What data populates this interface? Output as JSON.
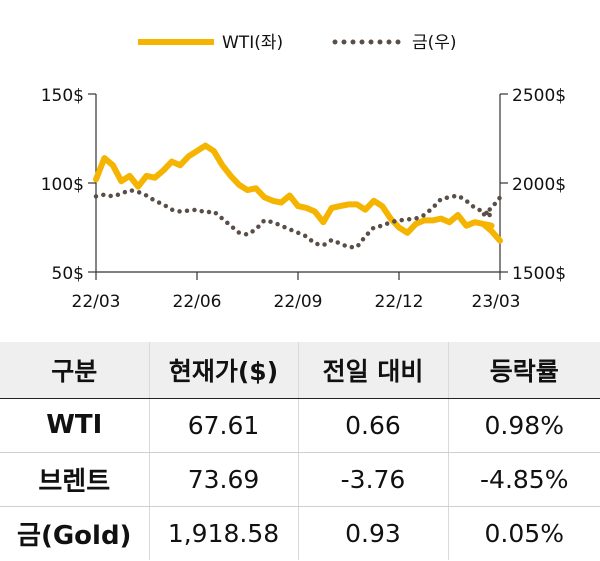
{
  "chart_data": {
    "type": "line",
    "x_ticks": [
      "22/03",
      "22/06",
      "22/09",
      "22/12",
      "23/03"
    ],
    "y_left": {
      "ticks": [
        "150$",
        "100$",
        "50$"
      ],
      "range": [
        50,
        150
      ]
    },
    "y_right": {
      "ticks": [
        "2500$",
        "2000$",
        "1500$"
      ],
      "range": [
        1500,
        2500
      ]
    },
    "legend_position": "top",
    "series": [
      {
        "name": "WTI(좌)",
        "axis": "left",
        "color": "#f5b400",
        "style": "solid",
        "x": [
          "22/03",
          "22/03",
          "22/03",
          "22/03",
          "22/04",
          "22/04",
          "22/04",
          "22/04",
          "22/05",
          "22/05",
          "22/05",
          "22/05",
          "22/06",
          "22/06",
          "22/06",
          "22/06",
          "22/07",
          "22/07",
          "22/07",
          "22/07",
          "22/08",
          "22/08",
          "22/08",
          "22/08",
          "22/09",
          "22/09",
          "22/09",
          "22/09",
          "22/10",
          "22/10",
          "22/10",
          "22/10",
          "22/11",
          "22/11",
          "22/11",
          "22/11",
          "22/12",
          "22/12",
          "22/12",
          "22/12",
          "23/01",
          "23/01",
          "23/01",
          "23/01",
          "23/02",
          "23/02",
          "23/02",
          "23/02",
          "23/03",
          "23/03",
          "23/03"
        ],
        "values": [
          102,
          114,
          110,
          101,
          104,
          98,
          104,
          103,
          107,
          112,
          110,
          115,
          118,
          121,
          118,
          110,
          104,
          99,
          96,
          97,
          92,
          90,
          89,
          93,
          87,
          86,
          84,
          78,
          86,
          87,
          88,
          88,
          85,
          90,
          87,
          80,
          75,
          72,
          77,
          79,
          79,
          80,
          78,
          82,
          76,
          78,
          77,
          76,
          77,
          73,
          67.61
        ]
      },
      {
        "name": "금(우)",
        "axis": "right",
        "color": "#5a4e48",
        "style": "dotted",
        "x": [
          "22/03",
          "22/03",
          "22/03",
          "22/03",
          "22/04",
          "22/04",
          "22/04",
          "22/04",
          "22/05",
          "22/05",
          "22/05",
          "22/05",
          "22/06",
          "22/06",
          "22/06",
          "22/06",
          "22/07",
          "22/07",
          "22/07",
          "22/07",
          "22/08",
          "22/08",
          "22/08",
          "22/08",
          "22/09",
          "22/09",
          "22/09",
          "22/09",
          "22/10",
          "22/10",
          "22/10",
          "22/10",
          "22/11",
          "22/11",
          "22/11",
          "22/11",
          "22/12",
          "22/12",
          "22/12",
          "22/12",
          "23/01",
          "23/01",
          "23/01",
          "23/01",
          "23/02",
          "23/02",
          "23/02",
          "23/02",
          "23/03",
          "23/03",
          "23/03"
        ],
        "values": [
          1925,
          1935,
          1925,
          1940,
          1960,
          1950,
          1930,
          1900,
          1880,
          1850,
          1840,
          1845,
          1850,
          1835,
          1840,
          1800,
          1760,
          1720,
          1710,
          1740,
          1790,
          1780,
          1760,
          1740,
          1720,
          1700,
          1660,
          1650,
          1680,
          1660,
          1640,
          1640,
          1700,
          1750,
          1760,
          1780,
          1790,
          1795,
          1800,
          1820,
          1860,
          1910,
          1920,
          1930,
          1900,
          1860,
          1840,
          1820,
          1820,
          1860,
          1918.58
        ]
      }
    ]
  },
  "table": {
    "headers": [
      "구분",
      "현재가($)",
      "전일 대비",
      "등락률"
    ],
    "rows": [
      {
        "label": "WTI",
        "price": "67.61",
        "change": "0.66",
        "rate": "0.98%"
      },
      {
        "label": "브렌트",
        "price": "73.69",
        "change": "-3.76",
        "rate": "-4.85%"
      },
      {
        "label": "금(Gold)",
        "price": "1,918.58",
        "change": "0.93",
        "rate": "0.05%"
      }
    ]
  }
}
